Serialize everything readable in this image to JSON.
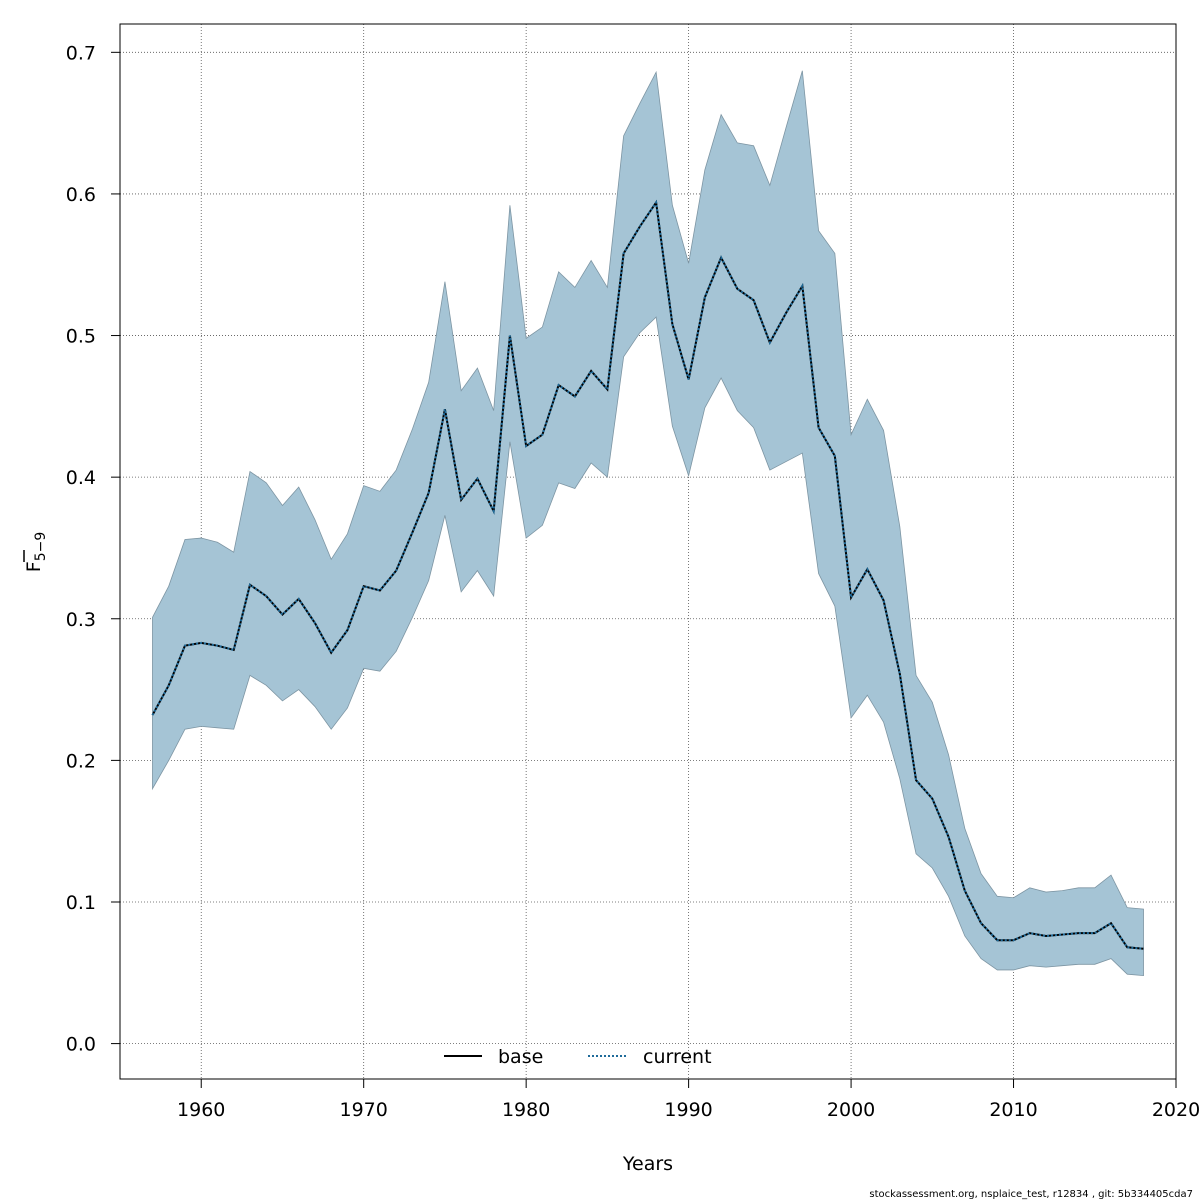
{
  "chart_data": {
    "type": "area",
    "xlabel": "Years",
    "ylabel_main": "F",
    "ylabel_sub": "5−9",
    "xlim": [
      1955,
      2020
    ],
    "ylim": [
      -0.025,
      0.72
    ],
    "xticks": [
      1960,
      1970,
      1980,
      1990,
      2000,
      2010,
      2020
    ],
    "yticks": [
      0.0,
      0.1,
      0.2,
      0.3,
      0.4,
      0.5,
      0.6,
      0.7
    ],
    "xtick_labels": [
      "1960",
      "1970",
      "1980",
      "1990",
      "2000",
      "2010",
      "2020"
    ],
    "ytick_labels": [
      "0.0",
      "0.1",
      "0.2",
      "0.3",
      "0.4",
      "0.5",
      "0.6",
      "0.7"
    ],
    "grid": true,
    "legend_position": "bottom-center",
    "band_color": "#a5c4d5",
    "x": [
      1957,
      1958,
      1959,
      1960,
      1961,
      1962,
      1963,
      1964,
      1965,
      1966,
      1967,
      1968,
      1969,
      1970,
      1971,
      1972,
      1973,
      1974,
      1975,
      1976,
      1977,
      1978,
      1979,
      1980,
      1981,
      1982,
      1983,
      1984,
      1985,
      1986,
      1987,
      1988,
      1989,
      1990,
      1991,
      1992,
      1993,
      1994,
      1995,
      1996,
      1997,
      1998,
      1999,
      2000,
      2001,
      2002,
      2003,
      2004,
      2005,
      2006,
      2007,
      2008,
      2009,
      2010,
      2011,
      2012,
      2013,
      2014,
      2015,
      2016,
      2017,
      2018
    ],
    "upper": [
      0.301,
      0.323,
      0.356,
      0.357,
      0.354,
      0.347,
      0.404,
      0.396,
      0.38,
      0.393,
      0.37,
      0.342,
      0.36,
      0.394,
      0.39,
      0.405,
      0.434,
      0.467,
      0.538,
      0.461,
      0.477,
      0.447,
      0.592,
      0.498,
      0.506,
      0.545,
      0.534,
      0.553,
      0.534,
      0.641,
      0.664,
      0.686,
      0.592,
      0.551,
      0.617,
      0.656,
      0.636,
      0.634,
      0.606,
      0.647,
      0.687,
      0.574,
      0.558,
      0.43,
      0.455,
      0.433,
      0.365,
      0.26,
      0.241,
      0.204,
      0.152,
      0.12,
      0.104,
      0.103,
      0.11,
      0.107,
      0.108,
      0.11,
      0.11,
      0.119,
      0.096,
      0.095
    ],
    "lower": [
      0.18,
      0.2,
      0.222,
      0.224,
      0.223,
      0.222,
      0.26,
      0.253,
      0.242,
      0.25,
      0.238,
      0.222,
      0.237,
      0.265,
      0.263,
      0.277,
      0.301,
      0.327,
      0.373,
      0.319,
      0.334,
      0.316,
      0.425,
      0.357,
      0.366,
      0.396,
      0.392,
      0.41,
      0.4,
      0.485,
      0.502,
      0.513,
      0.436,
      0.401,
      0.449,
      0.47,
      0.447,
      0.435,
      0.405,
      0.411,
      0.417,
      0.332,
      0.309,
      0.23,
      0.246,
      0.227,
      0.187,
      0.134,
      0.124,
      0.104,
      0.076,
      0.06,
      0.052,
      0.052,
      0.055,
      0.054,
      0.055,
      0.056,
      0.056,
      0.06,
      0.049,
      0.048
    ],
    "series": [
      {
        "name": "base",
        "line_style": "solid",
        "color": "#000000",
        "values": [
          0.232,
          0.253,
          0.281,
          0.283,
          0.281,
          0.278,
          0.324,
          0.316,
          0.303,
          0.314,
          0.297,
          0.276,
          0.292,
          0.323,
          0.32,
          0.334,
          0.361,
          0.389,
          0.448,
          0.384,
          0.399,
          0.376,
          0.5,
          0.422,
          0.43,
          0.465,
          0.457,
          0.475,
          0.462,
          0.558,
          0.577,
          0.594,
          0.508,
          0.469,
          0.527,
          0.555,
          0.533,
          0.525,
          0.495,
          0.516,
          0.535,
          0.435,
          0.415,
          0.315,
          0.335,
          0.313,
          0.261,
          0.186,
          0.173,
          0.146,
          0.108,
          0.085,
          0.073,
          0.073,
          0.078,
          0.076,
          0.077,
          0.078,
          0.078,
          0.085,
          0.068,
          0.067
        ]
      },
      {
        "name": "current",
        "line_style": "dotted",
        "color": "#1f6b9a",
        "values": [
          0.232,
          0.253,
          0.281,
          0.283,
          0.281,
          0.278,
          0.324,
          0.316,
          0.303,
          0.314,
          0.297,
          0.276,
          0.292,
          0.323,
          0.32,
          0.334,
          0.361,
          0.389,
          0.448,
          0.384,
          0.399,
          0.376,
          0.5,
          0.422,
          0.43,
          0.465,
          0.457,
          0.475,
          0.462,
          0.558,
          0.577,
          0.594,
          0.508,
          0.469,
          0.527,
          0.555,
          0.533,
          0.525,
          0.495,
          0.516,
          0.535,
          0.435,
          0.415,
          0.315,
          0.335,
          0.313,
          0.261,
          0.186,
          0.173,
          0.146,
          0.108,
          0.085,
          0.073,
          0.073,
          0.078,
          0.076,
          0.077,
          0.078,
          0.078,
          0.085,
          0.068,
          0.067
        ]
      }
    ],
    "footer": "stockassessment.org, nsplaice_test, r12834 , git: 5b334405cda7"
  }
}
